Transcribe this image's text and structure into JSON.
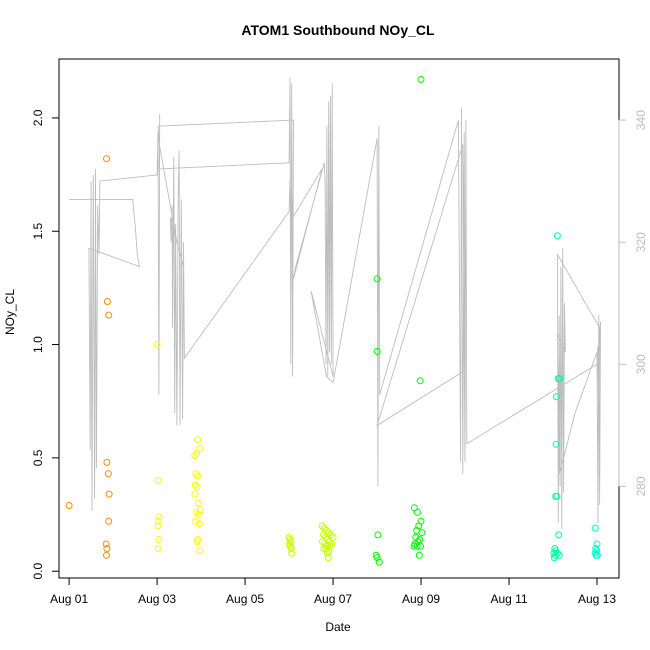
{
  "chart_data": {
    "type": "scatter",
    "title": "ATOM1 Southbound NOy_CL",
    "xlabel": "Date",
    "ylabel": "NOy_CL",
    "x_ticks": [
      "Aug 01",
      "Aug 03",
      "Aug 05",
      "Aug 07",
      "Aug 09",
      "Aug 11",
      "Aug 13"
    ],
    "x_tick_days": [
      1,
      3,
      5,
      7,
      9,
      11,
      13
    ],
    "xlim": [
      0.77,
      13.5
    ],
    "y_ticks": [
      "0.0",
      "0.5",
      "1.0",
      "1.5",
      "2.0"
    ],
    "y_tick_values": [
      0,
      0.5,
      1.0,
      1.5,
      2.0
    ],
    "ylim": [
      -0.03,
      2.26
    ],
    "y2_ticks": [
      "280",
      "300",
      "320",
      "340"
    ],
    "y2_tick_values": [
      280,
      300,
      320,
      340
    ],
    "y2lim": [
      265,
      350
    ],
    "colors": {
      "trace": "#bdbdbd",
      "scale": [
        "#ff8c00",
        "#ffc800",
        "#ffff00",
        "#c8ff00",
        "#00ff00",
        "#00ffa0",
        "#00ffd0"
      ]
    },
    "points": [
      {
        "x": 1.0,
        "y": 0.29,
        "color": "#ff8c00"
      },
      {
        "x": 1.85,
        "y": 1.82,
        "color": "#ff8c00"
      },
      {
        "x": 1.87,
        "y": 1.19,
        "color": "#ff8c00"
      },
      {
        "x": 1.9,
        "y": 1.13,
        "color": "#ff8c00"
      },
      {
        "x": 1.86,
        "y": 0.48,
        "color": "#ff8c00"
      },
      {
        "x": 1.89,
        "y": 0.43,
        "color": "#ff8c00"
      },
      {
        "x": 1.91,
        "y": 0.34,
        "color": "#ff8c00"
      },
      {
        "x": 1.9,
        "y": 0.22,
        "color": "#ff8c00"
      },
      {
        "x": 1.84,
        "y": 0.12,
        "color": "#ff8c00"
      },
      {
        "x": 1.86,
        "y": 0.1,
        "color": "#ff8c00"
      },
      {
        "x": 1.85,
        "y": 0.07,
        "color": "#ff8c00"
      },
      {
        "x": 3.0,
        "y": 1.0,
        "color": "#ffff00"
      },
      {
        "x": 3.02,
        "y": 0.4,
        "color": "#ffff00"
      },
      {
        "x": 3.04,
        "y": 0.24,
        "color": "#ffff00"
      },
      {
        "x": 3.03,
        "y": 0.22,
        "color": "#ffff00"
      },
      {
        "x": 3.02,
        "y": 0.2,
        "color": "#ffff00"
      },
      {
        "x": 3.04,
        "y": 0.14,
        "color": "#ffff00"
      },
      {
        "x": 3.02,
        "y": 0.1,
        "color": "#ffff00"
      },
      {
        "x": 3.92,
        "y": 0.58,
        "color": "#ffff00"
      },
      {
        "x": 3.97,
        "y": 0.54,
        "color": "#ffff00"
      },
      {
        "x": 3.9,
        "y": 0.52,
        "color": "#ffff00"
      },
      {
        "x": 3.86,
        "y": 0.51,
        "color": "#ffff00"
      },
      {
        "x": 3.88,
        "y": 0.43,
        "color": "#ffff00"
      },
      {
        "x": 3.92,
        "y": 0.42,
        "color": "#ffff00"
      },
      {
        "x": 3.87,
        "y": 0.38,
        "color": "#ffff00"
      },
      {
        "x": 3.91,
        "y": 0.37,
        "color": "#ffff00"
      },
      {
        "x": 3.86,
        "y": 0.34,
        "color": "#ffff00"
      },
      {
        "x": 3.94,
        "y": 0.3,
        "color": "#ffff00"
      },
      {
        "x": 3.98,
        "y": 0.27,
        "color": "#ffff00"
      },
      {
        "x": 3.9,
        "y": 0.26,
        "color": "#ffff00"
      },
      {
        "x": 3.95,
        "y": 0.25,
        "color": "#ffff00"
      },
      {
        "x": 3.88,
        "y": 0.22,
        "color": "#ffff00"
      },
      {
        "x": 3.96,
        "y": 0.21,
        "color": "#ffff00"
      },
      {
        "x": 3.93,
        "y": 0.14,
        "color": "#ffff00"
      },
      {
        "x": 3.91,
        "y": 0.13,
        "color": "#ffff00"
      },
      {
        "x": 3.97,
        "y": 0.09,
        "color": "#ffff00"
      },
      {
        "x": 6.0,
        "y": 0.15,
        "color": "#c8ff00"
      },
      {
        "x": 6.02,
        "y": 0.14,
        "color": "#c8ff00"
      },
      {
        "x": 6.04,
        "y": 0.13,
        "color": "#c8ff00"
      },
      {
        "x": 6.01,
        "y": 0.12,
        "color": "#c8ff00"
      },
      {
        "x": 6.03,
        "y": 0.11,
        "color": "#c8ff00"
      },
      {
        "x": 6.05,
        "y": 0.1,
        "color": "#c8ff00"
      },
      {
        "x": 6.06,
        "y": 0.08,
        "color": "#c8ff00"
      },
      {
        "x": 6.75,
        "y": 0.2,
        "color": "#c8ff00"
      },
      {
        "x": 6.8,
        "y": 0.19,
        "color": "#c8ff00"
      },
      {
        "x": 6.85,
        "y": 0.18,
        "color": "#c8ff00"
      },
      {
        "x": 6.9,
        "y": 0.17,
        "color": "#c8ff00"
      },
      {
        "x": 6.78,
        "y": 0.16,
        "color": "#c8ff00"
      },
      {
        "x": 6.95,
        "y": 0.16,
        "color": "#c8ff00"
      },
      {
        "x": 7.0,
        "y": 0.15,
        "color": "#c8ff00"
      },
      {
        "x": 6.83,
        "y": 0.15,
        "color": "#c8ff00"
      },
      {
        "x": 6.88,
        "y": 0.14,
        "color": "#c8ff00"
      },
      {
        "x": 6.76,
        "y": 0.13,
        "color": "#c8ff00"
      },
      {
        "x": 6.92,
        "y": 0.13,
        "color": "#c8ff00"
      },
      {
        "x": 6.97,
        "y": 0.12,
        "color": "#c8ff00"
      },
      {
        "x": 6.81,
        "y": 0.12,
        "color": "#c8ff00"
      },
      {
        "x": 6.86,
        "y": 0.11,
        "color": "#c8ff00"
      },
      {
        "x": 6.93,
        "y": 0.11,
        "color": "#c8ff00"
      },
      {
        "x": 6.79,
        "y": 0.1,
        "color": "#c8ff00"
      },
      {
        "x": 6.84,
        "y": 0.1,
        "color": "#c8ff00"
      },
      {
        "x": 6.9,
        "y": 0.09,
        "color": "#c8ff00"
      },
      {
        "x": 6.87,
        "y": 0.08,
        "color": "#c8ff00"
      },
      {
        "x": 6.89,
        "y": 0.06,
        "color": "#c8ff00"
      },
      {
        "x": 8.0,
        "y": 1.29,
        "color": "#00ff00"
      },
      {
        "x": 8.0,
        "y": 0.97,
        "color": "#00ff00"
      },
      {
        "x": 8.02,
        "y": 0.16,
        "color": "#00ff00"
      },
      {
        "x": 7.98,
        "y": 0.07,
        "color": "#00ff00"
      },
      {
        "x": 8.0,
        "y": 0.06,
        "color": "#00ff00"
      },
      {
        "x": 8.05,
        "y": 0.04,
        "color": "#00ff00"
      },
      {
        "x": 9.0,
        "y": 2.17,
        "color": "#00ff00"
      },
      {
        "x": 8.98,
        "y": 0.84,
        "color": "#00ff00"
      },
      {
        "x": 8.85,
        "y": 0.28,
        "color": "#00ff00"
      },
      {
        "x": 8.92,
        "y": 0.26,
        "color": "#00ff00"
      },
      {
        "x": 9.0,
        "y": 0.22,
        "color": "#00ff00"
      },
      {
        "x": 8.95,
        "y": 0.2,
        "color": "#00ff00"
      },
      {
        "x": 8.9,
        "y": 0.18,
        "color": "#00ff00"
      },
      {
        "x": 9.02,
        "y": 0.17,
        "color": "#00ff00"
      },
      {
        "x": 8.88,
        "y": 0.15,
        "color": "#00ff00"
      },
      {
        "x": 8.97,
        "y": 0.14,
        "color": "#00ff00"
      },
      {
        "x": 8.93,
        "y": 0.13,
        "color": "#00ff00"
      },
      {
        "x": 8.86,
        "y": 0.12,
        "color": "#00ff00"
      },
      {
        "x": 8.91,
        "y": 0.11,
        "color": "#00ff00"
      },
      {
        "x": 8.99,
        "y": 0.11,
        "color": "#00ff00"
      },
      {
        "x": 8.84,
        "y": 0.11,
        "color": "#00ff00"
      },
      {
        "x": 8.96,
        "y": 0.07,
        "color": "#00ff00"
      },
      {
        "x": 12.1,
        "y": 1.48,
        "color": "#00ffa0"
      },
      {
        "x": 12.12,
        "y": 0.85,
        "color": "#00ffa0"
      },
      {
        "x": 12.15,
        "y": 0.85,
        "color": "#00ffa0"
      },
      {
        "x": 12.08,
        "y": 0.77,
        "color": "#00ffa0"
      },
      {
        "x": 12.07,
        "y": 0.56,
        "color": "#00ffa0"
      },
      {
        "x": 12.06,
        "y": 0.33,
        "color": "#00ffa0"
      },
      {
        "x": 12.09,
        "y": 0.33,
        "color": "#00ffa0"
      },
      {
        "x": 12.13,
        "y": 0.16,
        "color": "#00ffa0"
      },
      {
        "x": 12.04,
        "y": 0.1,
        "color": "#00ffa0"
      },
      {
        "x": 12.06,
        "y": 0.09,
        "color": "#00ffa0"
      },
      {
        "x": 12.02,
        "y": 0.08,
        "color": "#00ffa0"
      },
      {
        "x": 12.1,
        "y": 0.08,
        "color": "#00ffa0"
      },
      {
        "x": 12.05,
        "y": 0.07,
        "color": "#00ffa0"
      },
      {
        "x": 12.14,
        "y": 0.07,
        "color": "#00ffa0"
      },
      {
        "x": 12.03,
        "y": 0.06,
        "color": "#00ffa0"
      },
      {
        "x": 12.96,
        "y": 0.19,
        "color": "#00ffd0"
      },
      {
        "x": 13.0,
        "y": 0.12,
        "color": "#00ffd0"
      },
      {
        "x": 12.97,
        "y": 0.1,
        "color": "#00ffd0"
      },
      {
        "x": 12.99,
        "y": 0.09,
        "color": "#00ffd0"
      },
      {
        "x": 12.96,
        "y": 0.08,
        "color": "#00ffd0"
      },
      {
        "x": 13.01,
        "y": 0.07,
        "color": "#00ffd0"
      },
      {
        "x": 12.98,
        "y": 0.07,
        "color": "#00ffd0"
      }
    ],
    "trace": [
      [
        1.0,
        327
      ],
      [
        2.45,
        327
      ],
      [
        2.47,
        325
      ],
      [
        2.5,
        323
      ],
      [
        2.55,
        318
      ],
      [
        2.6,
        316
      ],
      [
        1.45,
        319
      ],
      [
        1.48,
        286
      ],
      [
        1.5,
        330
      ],
      [
        1.52,
        276
      ],
      [
        1.55,
        331
      ],
      [
        1.58,
        278
      ],
      [
        1.6,
        332
      ],
      [
        1.62,
        283
      ],
      [
        1.65,
        326
      ],
      [
        1.68,
        318
      ],
      [
        1.7,
        330
      ],
      [
        3.0,
        331
      ],
      [
        3.02,
        338
      ],
      [
        3.04,
        295
      ],
      [
        3.06,
        341
      ],
      [
        3.05,
        332
      ],
      [
        6.0,
        333
      ],
      [
        6.02,
        347
      ],
      [
        6.04,
        300
      ],
      [
        6.06,
        346
      ],
      [
        6.08,
        298
      ],
      [
        6.1,
        340
      ],
      [
        3.02,
        339
      ],
      [
        3.05,
        336
      ],
      [
        3.2,
        330
      ],
      [
        3.45,
        320
      ],
      [
        3.6,
        316
      ],
      [
        3.3,
        324
      ],
      [
        3.32,
        320
      ],
      [
        3.34,
        326
      ],
      [
        3.35,
        306
      ],
      [
        3.38,
        334
      ],
      [
        3.4,
        292
      ],
      [
        3.42,
        323
      ],
      [
        3.45,
        290
      ],
      [
        3.48,
        328
      ],
      [
        3.5,
        335
      ],
      [
        3.52,
        290
      ],
      [
        3.55,
        327
      ],
      [
        3.58,
        291
      ],
      [
        3.6,
        320
      ],
      [
        3.62,
        301
      ],
      [
        6.0,
        325
      ],
      [
        6.02,
        330
      ],
      [
        6.04,
        325
      ],
      [
        6.06,
        331
      ],
      [
        6.08,
        324
      ],
      [
        6.75,
        332
      ],
      [
        6.1,
        314
      ],
      [
        6.15,
        316
      ],
      [
        6.8,
        333
      ],
      [
        6.82,
        330
      ],
      [
        6.84,
        300
      ],
      [
        6.86,
        339
      ],
      [
        6.88,
        298
      ],
      [
        6.9,
        343
      ],
      [
        6.92,
        302
      ],
      [
        6.94,
        344
      ],
      [
        6.96,
        300
      ],
      [
        6.98,
        346
      ],
      [
        7.0,
        298
      ],
      [
        6.5,
        312
      ],
      [
        6.85,
        298
      ],
      [
        7.0,
        297
      ],
      [
        8.0,
        337
      ],
      [
        8.02,
        280
      ],
      [
        8.04,
        339
      ],
      [
        8.06,
        295
      ],
      [
        9.85,
        340
      ],
      [
        9.9,
        284
      ],
      [
        9.92,
        342
      ],
      [
        9.95,
        282
      ],
      [
        9.98,
        338
      ],
      [
        10.0,
        299
      ],
      [
        8.0,
        290
      ],
      [
        9.95,
        336
      ],
      [
        10.0,
        284
      ],
      [
        10.02,
        340
      ],
      [
        10.04,
        287
      ],
      [
        13.0,
        300
      ],
      [
        13.02,
        303
      ],
      [
        13.04,
        289
      ],
      [
        13.06,
        306
      ],
      [
        12.1,
        318
      ],
      [
        12.12,
        274
      ],
      [
        12.14,
        308
      ],
      [
        12.16,
        280
      ],
      [
        12.18,
        316
      ],
      [
        12.2,
        273
      ],
      [
        12.22,
        319
      ],
      [
        12.24,
        279
      ],
      [
        12.26,
        310
      ],
      [
        12.28,
        302
      ],
      [
        12.1,
        305
      ],
      [
        12.15,
        282
      ],
      [
        12.5,
        292
      ],
      [
        13.0,
        302
      ],
      [
        13.02,
        274
      ],
      [
        13.04,
        308
      ],
      [
        13.06,
        277
      ],
      [
        13.08,
        307
      ],
      [
        13.0,
        298
      ]
    ]
  }
}
